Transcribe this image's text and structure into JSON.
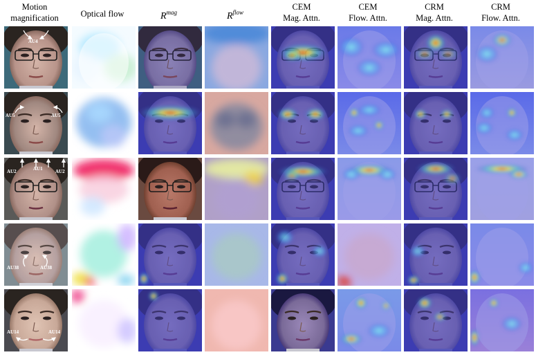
{
  "headers": [
    {
      "line1": "Motion",
      "line2": "magnification"
    },
    {
      "line1": "Optical flow",
      "line2": ""
    },
    {
      "math": "R",
      "sup": "mag"
    },
    {
      "math": "R",
      "sup": "flow"
    },
    {
      "line1": "CEM",
      "line2": "Mag. Attn."
    },
    {
      "line1": "CEM",
      "line2": "Flow. Attn."
    },
    {
      "line1": "CRM",
      "line2": "Mag. Attn."
    },
    {
      "line1": "CRM",
      "line2": "Flow. Attn."
    }
  ],
  "au_labels": {
    "row1": [
      "AU4"
    ],
    "row2": [
      "AU5",
      "AU5"
    ],
    "row3": [
      "AU2",
      "AU1",
      "AU2"
    ],
    "row4": [
      "AU38",
      "AU38"
    ],
    "row5": [
      "AU14",
      "AU14"
    ]
  },
  "palette": {
    "skin": "#b8948a",
    "hair": "#2a2420",
    "jet_low": "#3a3ad0",
    "jet_mid": "#4ad0c8",
    "jet_high": "#f0e040",
    "jet_peak": "#e03020"
  }
}
